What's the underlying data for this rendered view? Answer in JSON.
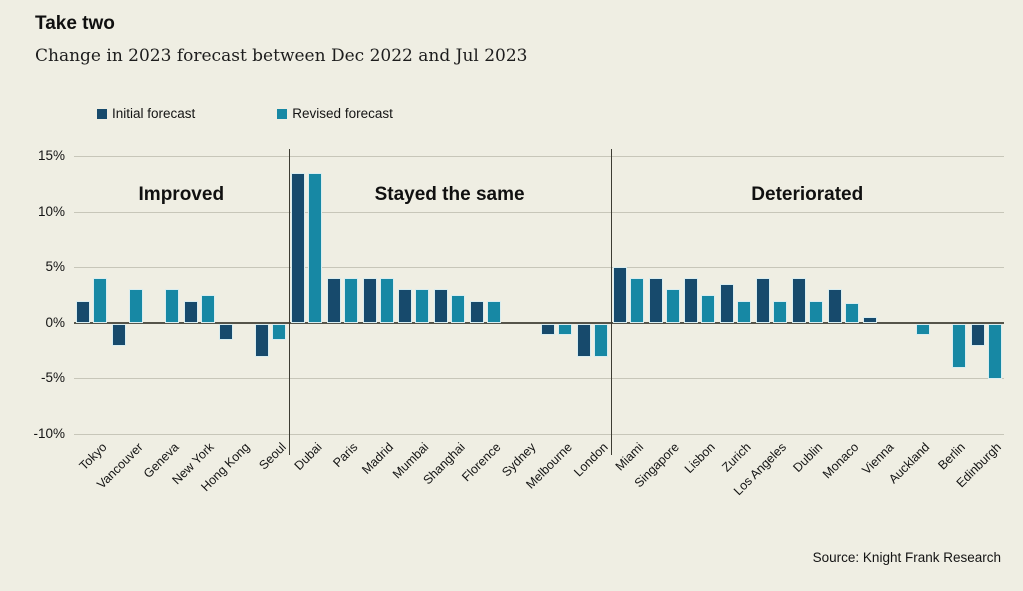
{
  "header": {
    "title": "Take two",
    "subtitle": "Change in 2023 forecast between Dec 2022 and Jul 2023"
  },
  "legend": [
    {
      "label": "Initial forecast",
      "color": "#174a6c"
    },
    {
      "label": "Revised forecast",
      "color": "#1788a4"
    }
  ],
  "source": "Source: Knight Frank Research",
  "colors": {
    "background": "#efeee3",
    "gridline": "#c7c6b9",
    "zero_axis": "#55544a",
    "initial_forecast": "#174a6c",
    "revised_forecast": "#1788a4"
  },
  "chart_data": {
    "type": "bar",
    "title": "Take two",
    "subtitle": "Change in 2023 forecast between Dec 2022 and Jul 2023",
    "xlabel": "",
    "ylabel": "",
    "ylim": [
      -10,
      15
    ],
    "y_ticks": [
      "15%",
      "10%",
      "5%",
      "0%",
      "-5%",
      "-10%"
    ],
    "grid": "horizontal",
    "legend_position": "top",
    "categories": [
      "Tokyo",
      "Vancouver",
      "Geneva",
      "New York",
      "Hong Kong",
      "Seoul",
      "Dubai",
      "Paris",
      "Madrid",
      "Mumbai",
      "Shanghai",
      "Florence",
      "Sydney",
      "Melbourne",
      "London",
      "Miami",
      "Singapore",
      "Lisbon",
      "Zurich",
      "Los Angeles",
      "Dublin",
      "Monaco",
      "Vienna",
      "Auckland",
      "Berlin",
      "Edinburgh"
    ],
    "series": [
      {
        "name": "Initial forecast",
        "color": "#174a6c",
        "values": [
          2,
          -2,
          0,
          2,
          -1.5,
          -3,
          13.5,
          4,
          4,
          3,
          3,
          2,
          0,
          -1,
          -3,
          5,
          4,
          4,
          3.5,
          4,
          4,
          3,
          0.5,
          0,
          0,
          -2
        ]
      },
      {
        "name": "Revised forecast",
        "color": "#1788a4",
        "values": [
          4,
          3,
          3,
          2.5,
          0,
          -1.5,
          13.5,
          4,
          4,
          3,
          2.5,
          2,
          0,
          -1,
          -3,
          4,
          3,
          2.5,
          2,
          2,
          2,
          1.8,
          0,
          -1,
          -4,
          -5
        ]
      }
    ],
    "sections": [
      {
        "label": "Improved",
        "start": 0,
        "end": 6
      },
      {
        "label": "Stayed the same",
        "start": 6,
        "end": 15
      },
      {
        "label": "Deteriorated",
        "start": 15,
        "end": 26
      }
    ]
  }
}
